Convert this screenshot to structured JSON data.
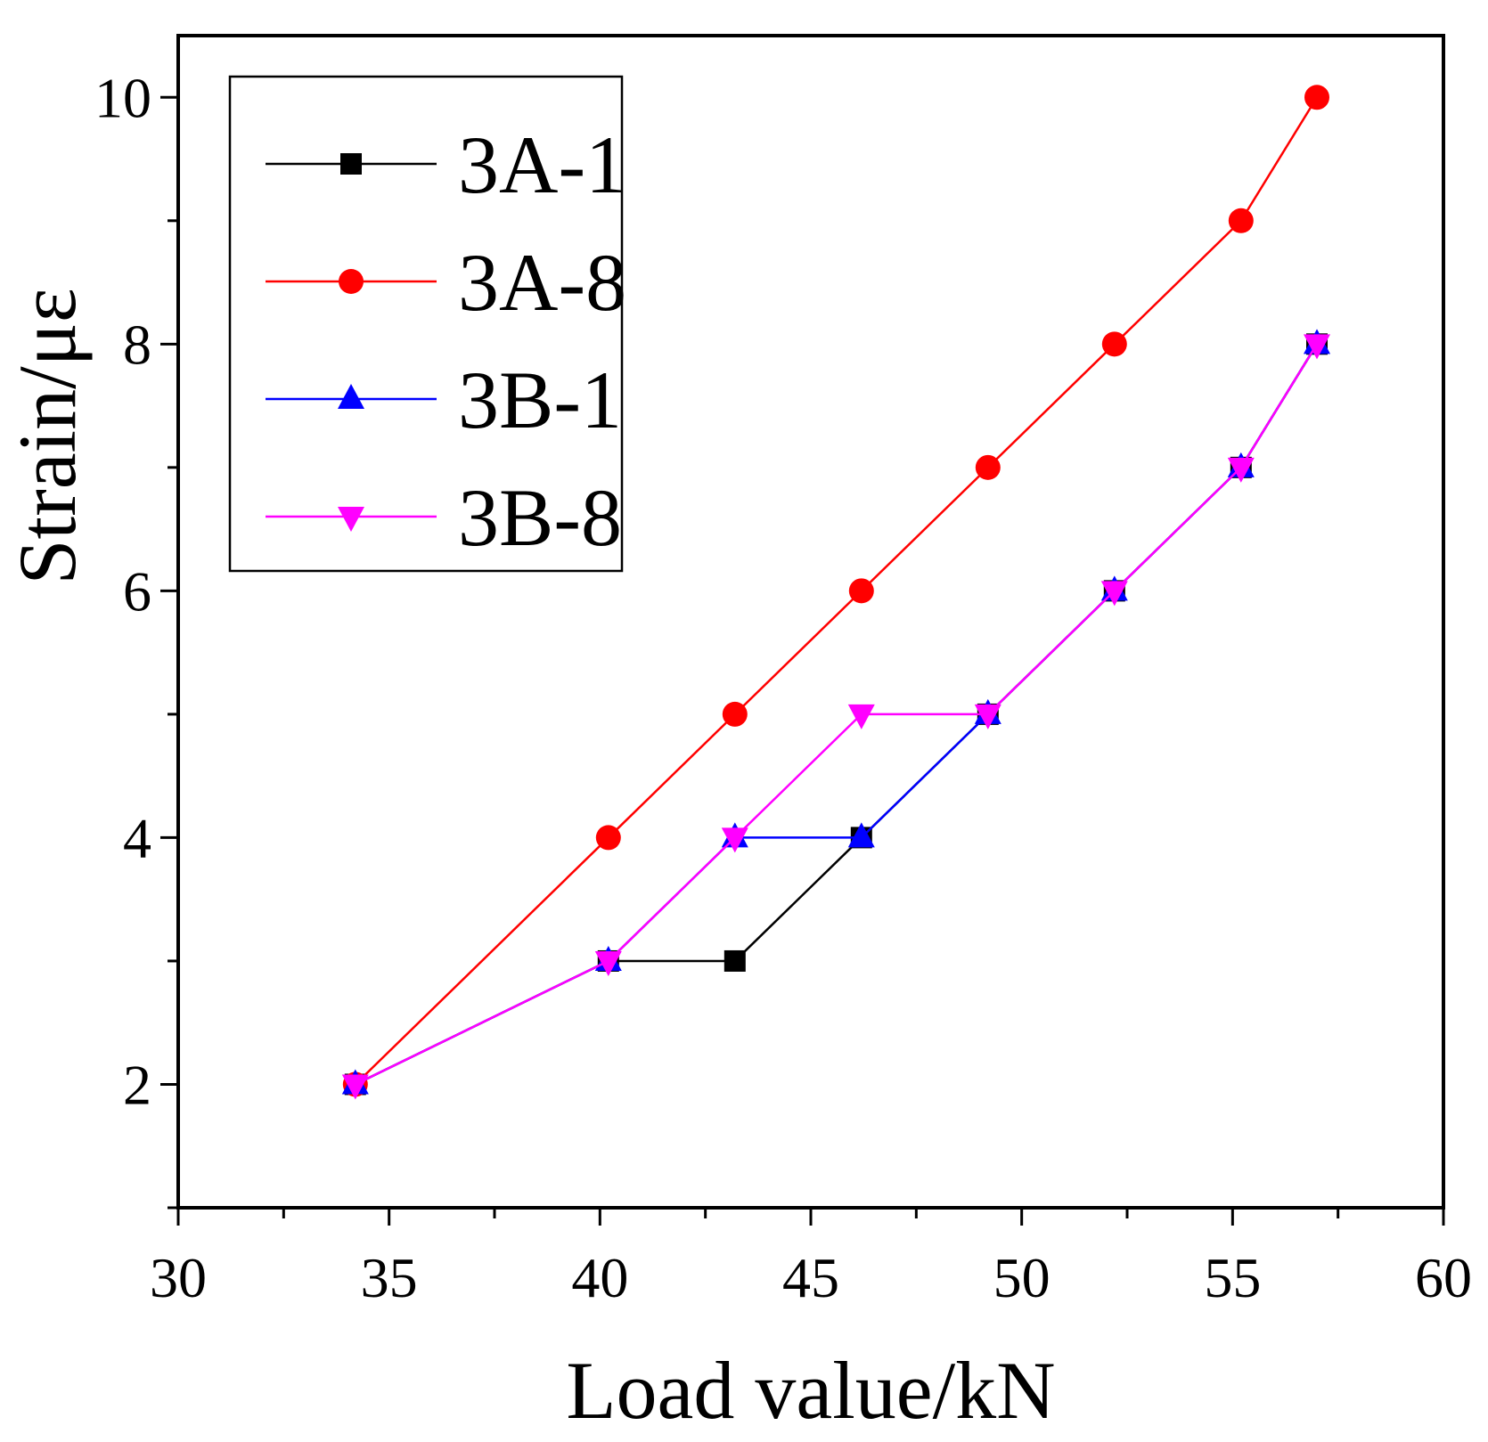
{
  "chart_data": {
    "type": "line",
    "title": "",
    "xlabel": "Load value/kN",
    "ylabel": "Strain/με",
    "xlim": [
      30,
      60
    ],
    "ylim": [
      1,
      10.5
    ],
    "xticks": [
      "30",
      "35",
      "40",
      "45",
      "50",
      "55",
      "60"
    ],
    "yticks": [
      "2",
      "4",
      "6",
      "8",
      "10"
    ],
    "legend_position": "top-left",
    "series": [
      {
        "name": "3A-1",
        "color": "#000000",
        "marker": "square",
        "x": [
          34.2,
          40.2,
          43.2,
          46.2,
          49.2,
          52.2,
          55.2,
          57.0
        ],
        "y": [
          2,
          3,
          3,
          4,
          5,
          6,
          7,
          8
        ]
      },
      {
        "name": "3A-8",
        "color": "#ff0000",
        "marker": "circle",
        "x": [
          34.2,
          40.2,
          43.2,
          46.2,
          49.2,
          52.2,
          55.2,
          57.0
        ],
        "y": [
          2,
          4,
          5,
          6,
          7,
          8,
          9,
          10
        ]
      },
      {
        "name": "3B-1",
        "color": "#0000ff",
        "marker": "triangle-up",
        "x": [
          34.2,
          40.2,
          43.2,
          46.2,
          49.2,
          52.2,
          55.2,
          57.0
        ],
        "y": [
          2,
          3,
          4,
          4,
          5,
          6,
          7,
          8
        ]
      },
      {
        "name": "3B-8",
        "color": "#ff00ff",
        "marker": "triangle-down",
        "x": [
          34.2,
          40.2,
          43.2,
          46.2,
          49.2,
          52.2,
          55.2,
          57.0
        ],
        "y": [
          2,
          3,
          4,
          5,
          5,
          6,
          7,
          8
        ]
      }
    ]
  }
}
